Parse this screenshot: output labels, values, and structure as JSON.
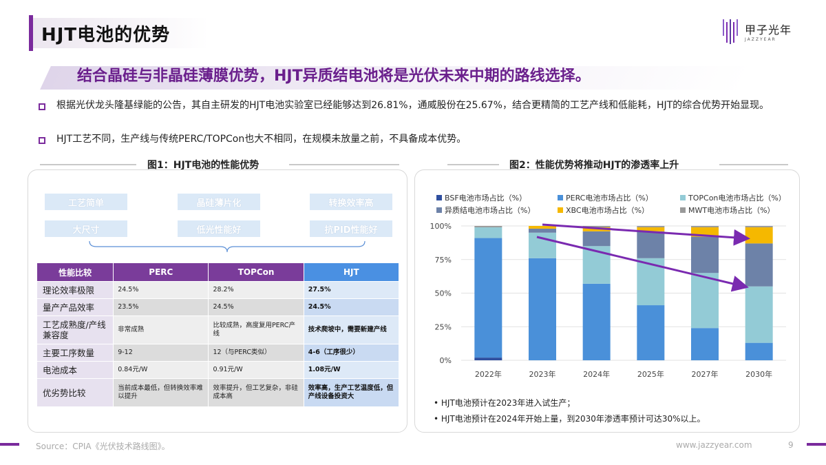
{
  "page_title": "HJT电池的优势",
  "logo": {
    "cn": "甲子光年",
    "en": "JAZZYEAR"
  },
  "headline": "结合晶硅与非晶硅薄膜优势，HJT异质结电池将是光伏未来中期的路线选择。",
  "bullets": [
    "根据光伏龙头隆基绿能的公告，其自主研发的HJT电池实验室已经能够达到26.81%，通威股份在25.67%，结合更精简的工艺产线和低能耗，HJT的综合优势开始显现。",
    "HJT工艺不同，生产线与传统PERC/TOPCon也大不相同，在规模未放量之前，不具备成本优势。"
  ],
  "figure1": {
    "title": "图1：HJT电池的性能优势",
    "tags": [
      "工艺简单",
      "晶硅薄片化",
      "转换效率高",
      "大尺寸",
      "低光性能好",
      "抗PID性能好"
    ],
    "table": {
      "headers": [
        "性能比较",
        "PERC",
        "TOPCon",
        "HJT"
      ],
      "rows": [
        [
          "理论效率极限",
          "24.5%",
          "28.2%",
          "27.5%"
        ],
        [
          "量产产品效率",
          "23.5%",
          "24.5%",
          "24.5%"
        ],
        [
          "工艺成熟度/产线兼容度",
          "非常成熟",
          "比较成熟，高度复用PERC产线",
          "技术爬坡中，需要新建产线"
        ],
        [
          "主要工序数量",
          "9-12",
          "12（与PERC类似）",
          "4-6（工序很少）"
        ],
        [
          "电池成本",
          "0.84元/W",
          "0.91元/W",
          "1.08元/W"
        ],
        [
          "优劣势比较",
          "当前成本最低，但转换效率难以提升",
          "效率提升，但工艺复杂，非硅成本高",
          "效率高，生产工艺温度低，但产线设备投资大"
        ]
      ],
      "colors": {
        "header_purple": "#7a3c9a",
        "header_blue": "#4a90e2"
      }
    }
  },
  "figure2": {
    "title": "图2：性能优势将推动HJT的渗透率上升",
    "notes": [
      "• HJT电池预计在2023年进入试生产；",
      "• HJT电池预计在2024年开始上量，到2030年渗透率预计可达30%以上。"
    ]
  },
  "chart_data": {
    "type": "bar",
    "stacked": true,
    "categories": [
      "2022年",
      "2023年",
      "2024年",
      "2025年",
      "2027年",
      "2030年"
    ],
    "y_ticks": [
      "0%",
      "25%",
      "50%",
      "75%",
      "100%"
    ],
    "ylim": [
      0,
      100
    ],
    "legend_position": "top",
    "series": [
      {
        "name": "BSF电池市场占比（%）",
        "color": "#2f4f9f",
        "values": [
          2,
          0,
          0,
          0,
          0,
          0
        ]
      },
      {
        "name": "PERC电池市场占比（%）",
        "color": "#4a90d9",
        "values": [
          89,
          76,
          57,
          41,
          24,
          13
        ]
      },
      {
        "name": "TOPCon电池市场占比（%）",
        "color": "#93cbd6",
        "values": [
          8,
          19,
          28,
          35,
          41,
          42
        ]
      },
      {
        "name": "异质结电池市场占比（%）",
        "color": "#6d82a8",
        "values": [
          0,
          3,
          11,
          20,
          27,
          32
        ]
      },
      {
        "name": "XBC电池市场占比（%）",
        "color": "#f5b800",
        "values": [
          0,
          2,
          3,
          3,
          7,
          12
        ]
      },
      {
        "name": "MWT电池市场占比（%）",
        "color": "#999999",
        "values": [
          1,
          0,
          1,
          1,
          1,
          1
        ]
      }
    ],
    "arrow_color": "#7a2ab0"
  },
  "footer": {
    "source": "Source：CPIA《光伏技术路线图》。",
    "url": "www.jazzyear.com",
    "page": "9"
  }
}
